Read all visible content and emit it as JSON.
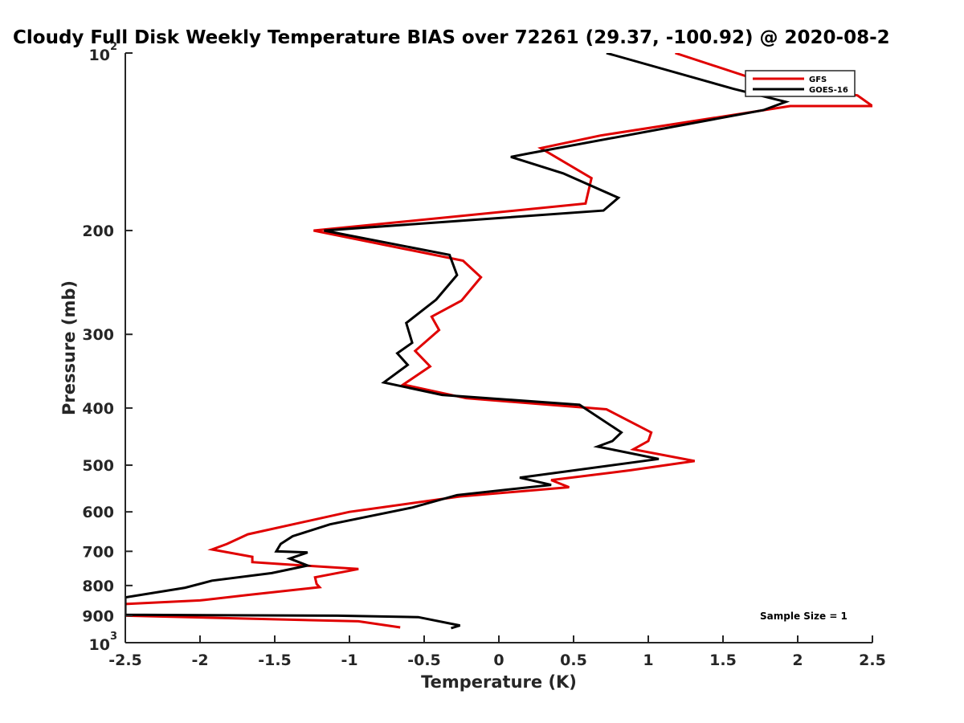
{
  "chart_data": {
    "type": "line",
    "title": "Cloudy Full Disk Weekly Temperature BIAS over 72261 (29.37, -100.92) @ 2020-08-2",
    "xlabel": "Temperature (K)",
    "ylabel": "Pressure (mb)",
    "xlim": [
      -2.5,
      2.5
    ],
    "ylim": [
      100,
      1000
    ],
    "yscale": "log",
    "y_reversed": true,
    "grid": false,
    "legend_position": "top-right",
    "x_ticks": [
      "-2.5",
      "-2",
      "-1.5",
      "-1",
      "-0.5",
      "0",
      "0.5",
      "1",
      "1.5",
      "2",
      "2.5"
    ],
    "y_ticks": [
      {
        "value": 100,
        "base": "10",
        "exp": "2"
      },
      {
        "value": 200,
        "label": "200"
      },
      {
        "value": 300,
        "label": "300"
      },
      {
        "value": 400,
        "label": "400"
      },
      {
        "value": 500,
        "label": "500"
      },
      {
        "value": 600,
        "label": "600"
      },
      {
        "value": 700,
        "label": "700"
      },
      {
        "value": 800,
        "label": "800"
      },
      {
        "value": 900,
        "label": "900"
      },
      {
        "value": 1000,
        "base": "10",
        "exp": "3"
      }
    ],
    "annotation": "Sample Size = 1",
    "series": [
      {
        "name": "GFS",
        "color": "#e00000",
        "points": [
          [
            1.18,
            100
          ],
          [
            1.68,
            110
          ],
          [
            2.4,
            118
          ],
          [
            2.5,
            123
          ],
          [
            1.95,
            123
          ],
          [
            0.68,
            138
          ],
          [
            0.28,
            145
          ],
          [
            0.62,
            163
          ],
          [
            0.58,
            180
          ],
          [
            -1.24,
            200
          ],
          [
            -0.24,
            225
          ],
          [
            -0.12,
            240
          ],
          [
            -0.25,
            263
          ],
          [
            -0.45,
            280
          ],
          [
            -0.4,
            295
          ],
          [
            -0.56,
            320
          ],
          [
            -0.46,
            340
          ],
          [
            -0.64,
            365
          ],
          [
            -0.22,
            385
          ],
          [
            0.72,
            402
          ],
          [
            1.02,
            440
          ],
          [
            1.0,
            455
          ],
          [
            0.9,
            470
          ],
          [
            1.31,
            492
          ],
          [
            0.88,
            510
          ],
          [
            0.35,
            530
          ],
          [
            0.47,
            545
          ],
          [
            -0.26,
            565
          ],
          [
            -1.0,
            600
          ],
          [
            -1.68,
            655
          ],
          [
            -1.82,
            680
          ],
          [
            -1.92,
            695
          ],
          [
            -1.65,
            715
          ],
          [
            -1.65,
            730
          ],
          [
            -1.48,
            735
          ],
          [
            -0.94,
            750
          ],
          [
            -1.23,
            775
          ],
          [
            -1.22,
            795
          ],
          [
            -1.2,
            805
          ],
          [
            -1.68,
            830
          ],
          [
            -2.0,
            848
          ],
          [
            -2.5,
            860
          ],
          [
            -2.5,
            900
          ],
          [
            -0.94,
            920
          ],
          [
            -0.66,
            942
          ]
        ]
      },
      {
        "name": "GOES-16",
        "color": "#000000",
        "points": [
          [
            0.72,
            100
          ],
          [
            1.57,
            115
          ],
          [
            1.92,
            121
          ],
          [
            1.77,
            125
          ],
          [
            0.2,
            148
          ],
          [
            0.08,
            150
          ],
          [
            0.43,
            160
          ],
          [
            0.8,
            176
          ],
          [
            0.7,
            185
          ],
          [
            -1.17,
            200
          ],
          [
            -0.33,
            220
          ],
          [
            -0.28,
            238
          ],
          [
            -0.42,
            262
          ],
          [
            -0.62,
            287
          ],
          [
            -0.58,
            310
          ],
          [
            -0.68,
            323
          ],
          [
            -0.61,
            338
          ],
          [
            -0.77,
            362
          ],
          [
            -0.38,
            380
          ],
          [
            0.54,
            395
          ],
          [
            0.82,
            440
          ],
          [
            0.76,
            455
          ],
          [
            0.66,
            465
          ],
          [
            1.07,
            488
          ],
          [
            0.14,
            525
          ],
          [
            0.35,
            540
          ],
          [
            -0.28,
            562
          ],
          [
            -0.58,
            590
          ],
          [
            -1.13,
            630
          ],
          [
            -1.38,
            660
          ],
          [
            -1.46,
            680
          ],
          [
            -1.49,
            700
          ],
          [
            -1.28,
            703
          ],
          [
            -1.4,
            720
          ],
          [
            -1.28,
            740
          ],
          [
            -1.52,
            762
          ],
          [
            -1.92,
            785
          ],
          [
            -2.1,
            807
          ],
          [
            -2.5,
            838
          ],
          [
            -2.5,
            897
          ],
          [
            -1.08,
            900
          ],
          [
            -0.54,
            905
          ],
          [
            -0.26,
            935
          ],
          [
            -0.32,
            945
          ]
        ]
      }
    ]
  }
}
